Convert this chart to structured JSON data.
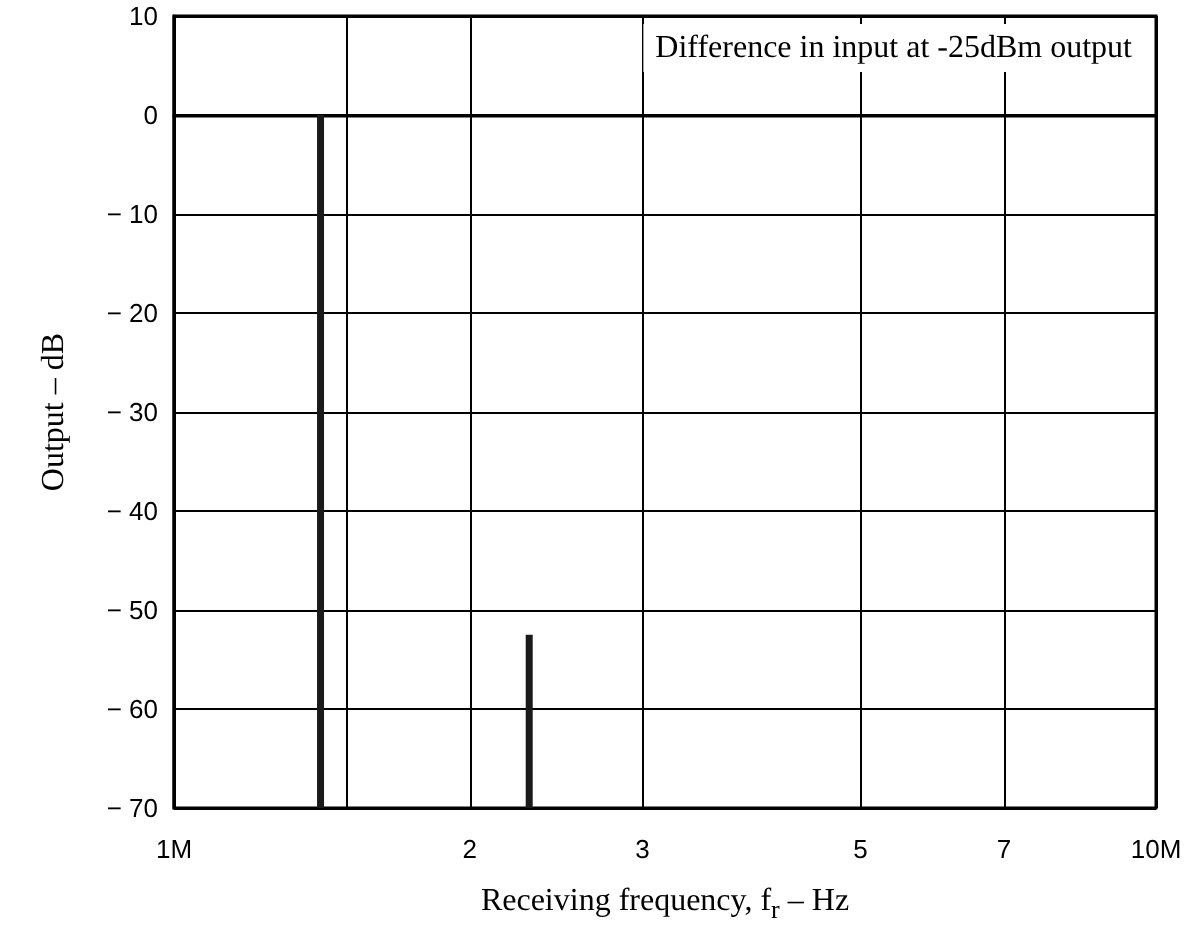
{
  "chart_data": {
    "type": "bar",
    "xlabel": "Receiving frequency, f$_{r}$ – Hz",
    "ylabel": "Output – dB",
    "annotations": [
      "Difference in input at -25dBm output"
    ],
    "x": [
      1.41,
      2.3
    ],
    "base": [
      -70,
      -70
    ],
    "values": [
      70,
      17.5
    ],
    "color": "#1a1a1a",
    "log": "x",
    "xlim": [
      1,
      10
    ],
    "xticks": [
      {
        "value": 1,
        "label": "1M"
      },
      {
        "value": 1.5,
        "label": null
      },
      2,
      3,
      5,
      7,
      {
        "value": 10,
        "label": "10M"
      }
    ],
    "ylim": [
      -70,
      10
    ],
    "yticks": [
      {
        "value": -70,
        "label": "− 70"
      },
      {
        "value": -60,
        "label": "− 60"
      },
      {
        "value": -50,
        "label": "− 50"
      },
      {
        "value": -40,
        "label": "− 40"
      },
      {
        "value": -30,
        "label": "− 30"
      },
      {
        "value": -20,
        "label": "− 20"
      },
      {
        "value": -10,
        "label": "− 10"
      },
      0,
      10
    ],
    "grid": true
  }
}
